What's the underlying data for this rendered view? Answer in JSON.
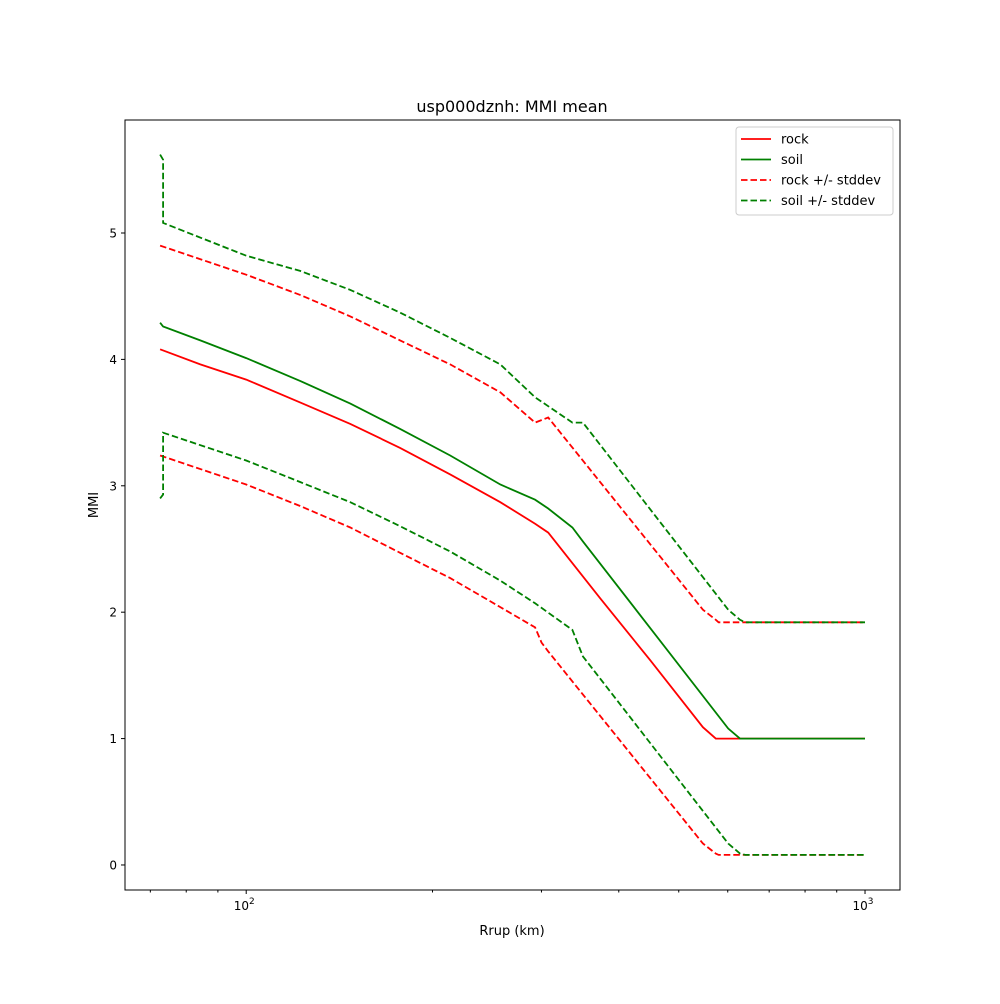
{
  "chart_data": {
    "type": "line",
    "title": "usp000dznh: MMI mean",
    "xlabel": "Rrup (km)",
    "ylabel": "MMI",
    "xscale": "log",
    "xlim": [
      63.7,
      1139
    ],
    "ylim": [
      -0.198,
      5.894
    ],
    "grid": false,
    "legend_position": "top-right",
    "x_ticks": [
      {
        "value": 100,
        "base": "10",
        "exp": "2"
      },
      {
        "value": 1000,
        "base": "10",
        "exp": "3"
      }
    ],
    "x_minor_ticks": [
      70,
      80,
      90,
      200,
      300,
      400,
      500,
      600,
      700,
      800,
      900
    ],
    "y_ticks": [
      0,
      1,
      2,
      3,
      4,
      5
    ],
    "series": [
      {
        "name": "rock",
        "color": "#ff0000",
        "style": "solid",
        "x": [
          72.6,
          84.3,
          100,
          122.2,
          147.3,
          177.3,
          213.6,
          257.4,
          293,
          307.6,
          373.3,
          449.6,
          547,
          574,
          1000
        ],
        "y": [
          4.08,
          3.96,
          3.84,
          3.66,
          3.49,
          3.3,
          3.09,
          2.87,
          2.7,
          2.63,
          2.11,
          1.62,
          1.09,
          1.0,
          1.0
        ]
      },
      {
        "name": "soil",
        "color": "#008000",
        "style": "solid",
        "x": [
          72.6,
          73.4,
          84.3,
          100,
          122.2,
          147.3,
          177.3,
          213.6,
          257.4,
          293,
          307.6,
          336.6,
          350,
          601,
          628,
          1000
        ],
        "y": [
          4.29,
          4.26,
          4.15,
          4.01,
          3.83,
          3.65,
          3.45,
          3.24,
          3.01,
          2.89,
          2.82,
          2.67,
          2.56,
          1.08,
          1.0,
          1.0
        ]
      },
      {
        "name": "rock +/- stddev",
        "color": "#ff0000",
        "style": "dashed",
        "x": [
          72.6,
          100,
          122.2,
          147.3,
          177.3,
          213.6,
          257.4,
          293,
          307.6,
          547,
          574,
          580,
          1000
        ],
        "y": [
          4.9,
          4.67,
          4.51,
          4.34,
          4.15,
          3.96,
          3.74,
          3.5,
          3.54,
          2.02,
          1.94,
          1.92,
          1.92
        ]
      },
      {
        "name": "rock +/- stddev (lower)",
        "color": "#ff0000",
        "style": "dashed",
        "legend": false,
        "x": [
          72.6,
          100,
          122.2,
          147.3,
          177.3,
          213.6,
          257.4,
          293,
          300,
          307.6,
          547,
          574,
          580,
          1000
        ],
        "y": [
          3.24,
          3.01,
          2.84,
          2.67,
          2.47,
          2.27,
          2.04,
          1.88,
          1.76,
          1.69,
          0.17,
          0.09,
          0.08,
          0.08
        ]
      },
      {
        "name": "soil +/- stddev",
        "color": "#008000",
        "style": "dashed",
        "x": [
          72.6,
          73.4,
          73.4,
          100,
          122.2,
          147.3,
          177.3,
          213.6,
          257.4,
          293,
          336.6,
          350,
          601,
          628,
          640,
          1000
        ],
        "y": [
          5.62,
          5.58,
          5.08,
          4.82,
          4.7,
          4.55,
          4.37,
          4.17,
          3.96,
          3.7,
          3.5,
          3.5,
          2.02,
          1.94,
          1.92,
          1.92
        ]
      },
      {
        "name": "soil +/- stddev (lower)",
        "color": "#008000",
        "style": "dashed",
        "legend": false,
        "x": [
          72.6,
          73.4,
          73.4,
          100,
          122.2,
          147.3,
          177.3,
          213.6,
          257.4,
          293,
          336.6,
          350,
          601,
          628,
          640,
          1000
        ],
        "y": [
          2.9,
          2.93,
          3.42,
          3.2,
          3.03,
          2.87,
          2.68,
          2.48,
          2.25,
          2.07,
          1.86,
          1.65,
          0.17,
          0.09,
          0.08,
          0.08
        ]
      }
    ],
    "legend": [
      {
        "label": "rock",
        "color": "#ff0000",
        "style": "solid"
      },
      {
        "label": "soil",
        "color": "#008000",
        "style": "solid"
      },
      {
        "label": "rock +/- stddev",
        "color": "#ff0000",
        "style": "dashed"
      },
      {
        "label": "soil +/- stddev",
        "color": "#008000",
        "style": "dashed"
      }
    ]
  }
}
